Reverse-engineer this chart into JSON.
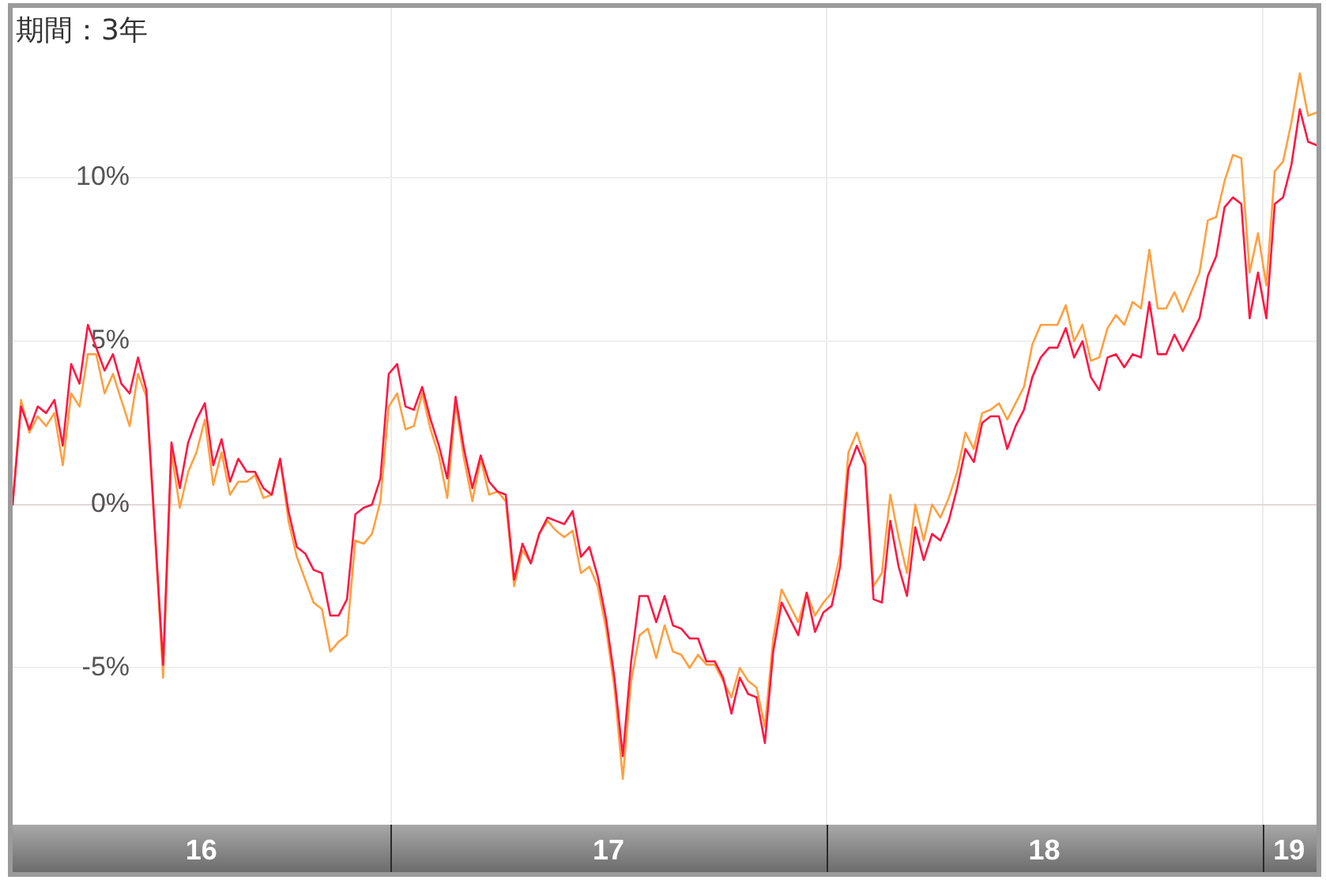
{
  "chart_data": {
    "type": "line",
    "title": "期間：3年",
    "marker": "none",
    "grid": true,
    "xlim": [
      "2016-02-19",
      "2019-02-15"
    ],
    "xticks": [
      {
        "value": "2016-07-26",
        "label": "16"
      },
      {
        "value": "2017-01-01",
        "label": null
      },
      {
        "value": "2017-07-02",
        "label": "17"
      },
      {
        "value": "2018-01-01",
        "label": null
      },
      {
        "value": "2018-07-02",
        "label": "18"
      },
      {
        "value": "2019-01-01",
        "label": null
      },
      {
        "value": "2019-01-23",
        "label": "19"
      }
    ],
    "ylim": [
      -9.8,
      15.2
    ],
    "yticks": [
      {
        "value": -5,
        "label": "-5%"
      },
      {
        "value": 0,
        "label": "0%"
      },
      {
        "value": 5,
        "label": "5%"
      },
      {
        "value": 10,
        "label": "10%"
      }
    ],
    "x": [
      "2016-02-19",
      "2016-02-26",
      "2016-03-04",
      "2016-03-11",
      "2016-03-18",
      "2016-03-25",
      "2016-04-01",
      "2016-04-08",
      "2016-04-15",
      "2016-04-22",
      "2016-04-29",
      "2016-05-06",
      "2016-05-13",
      "2016-05-20",
      "2016-05-27",
      "2016-06-03",
      "2016-06-10",
      "2016-06-17",
      "2016-06-24",
      "2016-07-01",
      "2016-07-08",
      "2016-07-15",
      "2016-07-22",
      "2016-07-29",
      "2016-08-05",
      "2016-08-12",
      "2016-08-19",
      "2016-08-26",
      "2016-09-02",
      "2016-09-09",
      "2016-09-16",
      "2016-09-23",
      "2016-09-30",
      "2016-10-07",
      "2016-10-14",
      "2016-10-21",
      "2016-10-28",
      "2016-11-04",
      "2016-11-11",
      "2016-11-18",
      "2016-11-25",
      "2016-12-02",
      "2016-12-09",
      "2016-12-16",
      "2016-12-23",
      "2016-12-30",
      "2017-01-06",
      "2017-01-13",
      "2017-01-20",
      "2017-01-27",
      "2017-02-03",
      "2017-02-10",
      "2017-02-17",
      "2017-02-24",
      "2017-03-03",
      "2017-03-10",
      "2017-03-17",
      "2017-03-24",
      "2017-03-31",
      "2017-04-07",
      "2017-04-14",
      "2017-04-21",
      "2017-04-28",
      "2017-05-05",
      "2017-05-12",
      "2017-05-19",
      "2017-05-26",
      "2017-06-02",
      "2017-06-09",
      "2017-06-16",
      "2017-06-23",
      "2017-06-30",
      "2017-07-07",
      "2017-07-14",
      "2017-07-21",
      "2017-07-28",
      "2017-08-04",
      "2017-08-11",
      "2017-08-18",
      "2017-08-25",
      "2017-09-01",
      "2017-09-08",
      "2017-09-15",
      "2017-09-22",
      "2017-09-29",
      "2017-10-06",
      "2017-10-13",
      "2017-10-20",
      "2017-10-27",
      "2017-11-03",
      "2017-11-10",
      "2017-11-17",
      "2017-11-24",
      "2017-12-01",
      "2017-12-08",
      "2017-12-15",
      "2017-12-22",
      "2017-12-29",
      "2018-01-05",
      "2018-01-12",
      "2018-01-19",
      "2018-01-26",
      "2018-02-02",
      "2018-02-09",
      "2018-02-16",
      "2018-02-23",
      "2018-03-02",
      "2018-03-09",
      "2018-03-16",
      "2018-03-23",
      "2018-03-30",
      "2018-04-06",
      "2018-04-13",
      "2018-04-20",
      "2018-04-27",
      "2018-05-04",
      "2018-05-11",
      "2018-05-18",
      "2018-05-25",
      "2018-06-01",
      "2018-06-08",
      "2018-06-15",
      "2018-06-22",
      "2018-06-29",
      "2018-07-06",
      "2018-07-13",
      "2018-07-20",
      "2018-07-27",
      "2018-08-03",
      "2018-08-10",
      "2018-08-17",
      "2018-08-24",
      "2018-08-31",
      "2018-09-07",
      "2018-09-14",
      "2018-09-21",
      "2018-09-28",
      "2018-10-05",
      "2018-10-12",
      "2018-10-19",
      "2018-10-26",
      "2018-11-02",
      "2018-11-09",
      "2018-11-16",
      "2018-11-23",
      "2018-11-30",
      "2018-12-07",
      "2018-12-14",
      "2018-12-21",
      "2018-12-28",
      "2019-01-04",
      "2019-01-11",
      "2019-01-18",
      "2019-01-25",
      "2019-02-01",
      "2019-02-08",
      "2019-02-15"
    ],
    "series": [
      {
        "color": "#ff1744",
        "values": [
          0.0,
          3.0,
          2.3,
          3.0,
          2.8,
          3.2,
          1.8,
          4.3,
          3.7,
          5.5,
          4.8,
          4.1,
          4.6,
          3.7,
          3.4,
          4.5,
          3.5,
          -0.7,
          -4.9,
          1.9,
          0.5,
          1.9,
          2.6,
          3.1,
          1.2,
          2.0,
          0.7,
          1.4,
          1.0,
          1.0,
          0.5,
          0.3,
          1.4,
          -0.2,
          -1.3,
          -1.5,
          -2.0,
          -2.1,
          -3.4,
          -3.4,
          -2.9,
          -0.3,
          -0.1,
          0.0,
          0.8,
          4.0,
          4.3,
          3.0,
          2.9,
          3.6,
          2.6,
          1.8,
          0.8,
          3.3,
          1.7,
          0.5,
          1.5,
          0.7,
          0.4,
          0.3,
          -2.3,
          -1.2,
          -1.8,
          -0.9,
          -0.4,
          -0.5,
          -0.6,
          -0.2,
          -1.6,
          -1.3,
          -2.2,
          -3.5,
          -5.3,
          -7.7,
          -4.8,
          -2.8,
          -2.8,
          -3.6,
          -2.8,
          -3.7,
          -3.8,
          -4.1,
          -4.1,
          -4.8,
          -4.8,
          -5.3,
          -6.4,
          -5.3,
          -5.8,
          -5.9,
          -7.3,
          -4.5,
          -3.0,
          -3.5,
          -4.0,
          -2.7,
          -3.9,
          -3.3,
          -3.1,
          -1.9,
          1.1,
          1.8,
          1.2,
          -2.9,
          -3.0,
          -0.5,
          -1.9,
          -2.8,
          -0.7,
          -1.7,
          -0.9,
          -1.1,
          -0.5,
          0.5,
          1.7,
          1.3,
          2.5,
          2.7,
          2.7,
          1.7,
          2.4,
          2.9,
          3.9,
          4.5,
          4.8,
          4.8,
          5.4,
          4.5,
          5.0,
          3.9,
          3.5,
          4.5,
          4.6,
          4.2,
          4.6,
          4.5,
          6.2,
          4.6,
          4.6,
          5.2,
          4.7,
          5.2,
          5.7,
          7.0,
          7.6,
          9.1,
          9.4,
          9.2,
          5.7,
          7.1,
          5.7,
          9.2,
          9.4,
          10.4,
          12.1,
          11.1,
          11.0
        ]
      },
      {
        "color": "#ffa040",
        "values": [
          0.0,
          3.2,
          2.2,
          2.7,
          2.4,
          2.8,
          1.2,
          3.4,
          3.0,
          4.6,
          4.6,
          3.4,
          4.0,
          3.2,
          2.4,
          4.0,
          3.3,
          -0.8,
          -5.3,
          1.6,
          -0.1,
          1.0,
          1.6,
          2.6,
          0.6,
          1.6,
          0.3,
          0.7,
          0.7,
          0.9,
          0.2,
          0.3,
          1.4,
          -0.5,
          -1.6,
          -2.3,
          -3.0,
          -3.2,
          -4.5,
          -4.2,
          -4.0,
          -1.1,
          -1.2,
          -0.9,
          0.1,
          3.0,
          3.4,
          2.3,
          2.4,
          3.4,
          2.3,
          1.5,
          0.2,
          3.1,
          1.4,
          0.1,
          1.4,
          0.3,
          0.4,
          0.1,
          -2.5,
          -1.4,
          -1.8,
          -0.9,
          -0.5,
          -0.8,
          -1.0,
          -0.8,
          -2.1,
          -1.9,
          -2.5,
          -3.8,
          -5.6,
          -8.4,
          -5.4,
          -4.0,
          -3.8,
          -4.7,
          -3.7,
          -4.5,
          -4.6,
          -5.0,
          -4.6,
          -4.9,
          -4.9,
          -5.4,
          -5.9,
          -5.0,
          -5.4,
          -5.6,
          -6.8,
          -4.1,
          -2.6,
          -3.1,
          -3.6,
          -2.7,
          -3.4,
          -3.0,
          -2.7,
          -1.5,
          1.6,
          2.2,
          1.4,
          -2.5,
          -2.1,
          0.3,
          -1.0,
          -2.1,
          0.0,
          -1.1,
          0.0,
          -0.4,
          0.2,
          1.0,
          2.2,
          1.7,
          2.8,
          2.9,
          3.1,
          2.6,
          3.1,
          3.6,
          4.9,
          5.5,
          5.5,
          5.5,
          6.1,
          5.0,
          5.5,
          4.4,
          4.5,
          5.4,
          5.8,
          5.5,
          6.2,
          6.0,
          7.8,
          6.0,
          6.0,
          6.5,
          5.9,
          6.5,
          7.1,
          8.7,
          8.8,
          9.9,
          10.7,
          10.6,
          7.1,
          8.3,
          6.7,
          10.2,
          10.5,
          11.7,
          13.2,
          11.9,
          12.0
        ]
      }
    ]
  }
}
